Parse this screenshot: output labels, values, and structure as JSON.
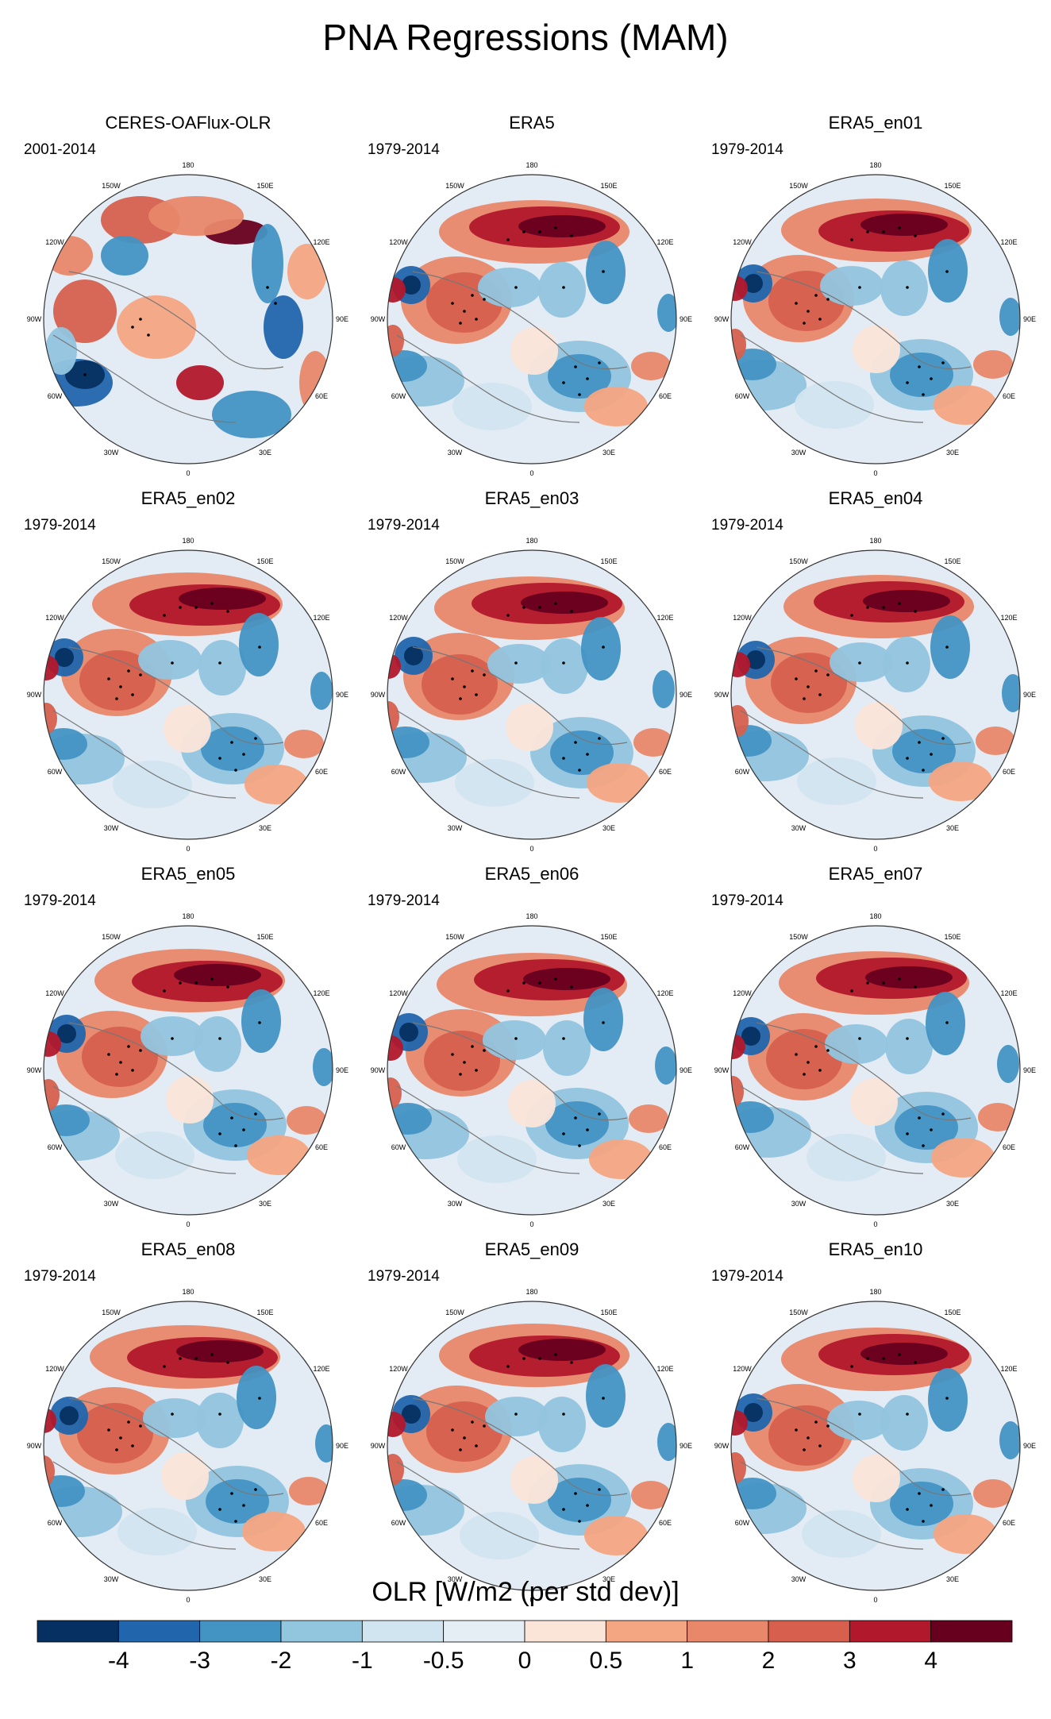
{
  "title": "PNA Regressions (MAM)",
  "colorbar": {
    "label": "OLR [W/m2 (per std dev)]",
    "levels": [
      "-4",
      "-3",
      "-2",
      "-1",
      "-0.5",
      "0",
      "0.5",
      "1",
      "2",
      "3",
      "4"
    ],
    "colors": [
      "#053061",
      "#2166ac",
      "#4393c3",
      "#92c5de",
      "#d1e5f0",
      "#e6eef5",
      "#fbe5d9",
      "#f4a582",
      "#e8876a",
      "#d6604d",
      "#b2182b",
      "#67001f"
    ]
  },
  "lon_labels": [
    "180",
    "150E",
    "120E",
    "90E",
    "60E",
    "30E",
    "0",
    "30W",
    "60W",
    "90W",
    "120W",
    "150W"
  ],
  "chart_data": [
    {
      "type": "polar-contour",
      "title": "CERES-OAFlux-OLR",
      "period": "2001-2014"
    },
    {
      "type": "polar-contour",
      "title": "ERA5",
      "period": "1979-2014"
    },
    {
      "type": "polar-contour",
      "title": "ERA5_en01",
      "period": "1979-2014"
    },
    {
      "type": "polar-contour",
      "title": "ERA5_en02",
      "period": "1979-2014"
    },
    {
      "type": "polar-contour",
      "title": "ERA5_en03",
      "period": "1979-2014"
    },
    {
      "type": "polar-contour",
      "title": "ERA5_en04",
      "period": "1979-2014"
    },
    {
      "type": "polar-contour",
      "title": "ERA5_en05",
      "period": "1979-2014"
    },
    {
      "type": "polar-contour",
      "title": "ERA5_en06",
      "period": "1979-2014"
    },
    {
      "type": "polar-contour",
      "title": "ERA5_en07",
      "period": "1979-2014"
    },
    {
      "type": "polar-contour",
      "title": "ERA5_en08",
      "period": "1979-2014"
    },
    {
      "type": "polar-contour",
      "title": "ERA5_en09",
      "period": "1979-2014"
    },
    {
      "type": "polar-contour",
      "title": "ERA5_en10",
      "period": "1979-2014"
    }
  ]
}
